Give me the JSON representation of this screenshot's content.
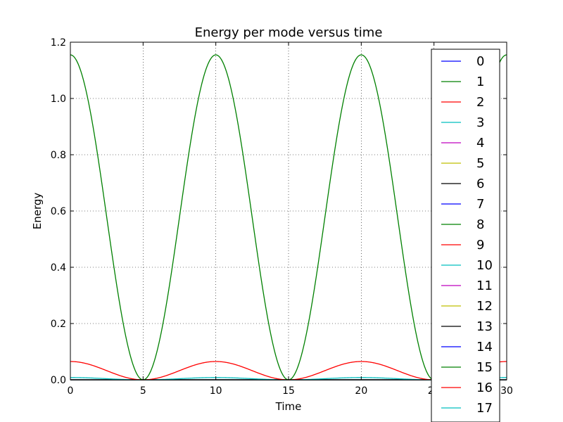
{
  "chart_data": {
    "type": "line",
    "title": "Energy per mode versus time",
    "xlabel": "Time",
    "ylabel": "Energy",
    "xlim": [
      0,
      30
    ],
    "ylim": [
      0,
      1.2
    ],
    "x_ticks": [
      "0",
      "5",
      "10",
      "15",
      "20",
      "25",
      "30"
    ],
    "y_ticks": [
      "0.0",
      "0.2",
      "0.4",
      "0.6",
      "0.8",
      "1.0",
      "1.2"
    ],
    "grid": true,
    "legend_position": "right",
    "period": 10,
    "series": [
      {
        "name": "0",
        "color": "#0000ff",
        "amplitude": 0
      },
      {
        "name": "1",
        "color": "#008000",
        "amplitude": 1.155
      },
      {
        "name": "2",
        "color": "#ff0000",
        "amplitude": 0.065
      },
      {
        "name": "3",
        "color": "#00bfbf",
        "amplitude": 0.008
      },
      {
        "name": "4",
        "color": "#bf00bf",
        "amplitude": 0
      },
      {
        "name": "5",
        "color": "#bfbf00",
        "amplitude": 0
      },
      {
        "name": "6",
        "color": "#000000",
        "amplitude": 0
      },
      {
        "name": "7",
        "color": "#0000ff",
        "amplitude": 0
      },
      {
        "name": "8",
        "color": "#008000",
        "amplitude": 0
      },
      {
        "name": "9",
        "color": "#ff0000",
        "amplitude": 0
      },
      {
        "name": "10",
        "color": "#00bfbf",
        "amplitude": 0
      },
      {
        "name": "11",
        "color": "#bf00bf",
        "amplitude": 0
      },
      {
        "name": "12",
        "color": "#bfbf00",
        "amplitude": 0
      },
      {
        "name": "13",
        "color": "#000000",
        "amplitude": 0
      },
      {
        "name": "14",
        "color": "#0000ff",
        "amplitude": 0
      },
      {
        "name": "15",
        "color": "#008000",
        "amplitude": 0
      },
      {
        "name": "16",
        "color": "#ff0000",
        "amplitude": 0
      },
      {
        "name": "17",
        "color": "#00bfbf",
        "amplitude": 0
      }
    ]
  }
}
